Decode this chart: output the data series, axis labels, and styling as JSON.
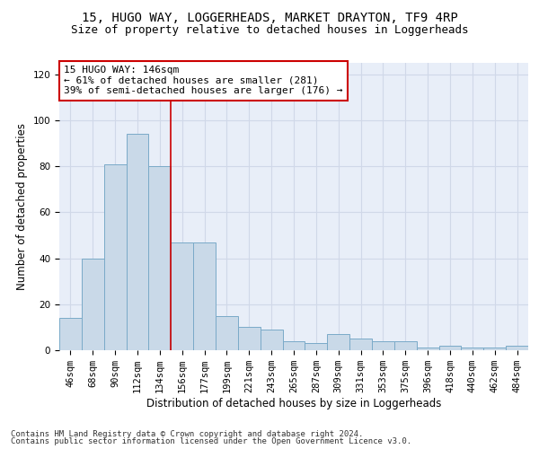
{
  "title_line1": "15, HUGO WAY, LOGGERHEADS, MARKET DRAYTON, TF9 4RP",
  "title_line2": "Size of property relative to detached houses in Loggerheads",
  "xlabel": "Distribution of detached houses by size in Loggerheads",
  "ylabel": "Number of detached properties",
  "categories": [
    "46sqm",
    "68sqm",
    "90sqm",
    "112sqm",
    "134sqm",
    "156sqm",
    "177sqm",
    "199sqm",
    "221sqm",
    "243sqm",
    "265sqm",
    "287sqm",
    "309sqm",
    "331sqm",
    "353sqm",
    "375sqm",
    "396sqm",
    "418sqm",
    "440sqm",
    "462sqm",
    "484sqm"
  ],
  "values": [
    14,
    40,
    81,
    94,
    80,
    47,
    47,
    15,
    10,
    9,
    4,
    3,
    7,
    5,
    4,
    4,
    1,
    2,
    1,
    1,
    2
  ],
  "bar_color": "#c9d9e8",
  "bar_edge_color": "#7aaac8",
  "vline_x": 4.5,
  "vline_color": "#cc0000",
  "annotation_text": "15 HUGO WAY: 146sqm\n← 61% of detached houses are smaller (281)\n39% of semi-detached houses are larger (176) →",
  "annotation_box_color": "#ffffff",
  "annotation_box_edge_color": "#cc0000",
  "ylim": [
    0,
    125
  ],
  "yticks": [
    0,
    20,
    40,
    60,
    80,
    100,
    120
  ],
  "grid_color": "#d0d8e8",
  "bg_color": "#e8eef8",
  "footer_line1": "Contains HM Land Registry data © Crown copyright and database right 2024.",
  "footer_line2": "Contains public sector information licensed under the Open Government Licence v3.0.",
  "title_fontsize": 10,
  "subtitle_fontsize": 9,
  "axis_label_fontsize": 8.5,
  "tick_fontsize": 7.5,
  "annotation_fontsize": 8,
  "footer_fontsize": 6.5
}
